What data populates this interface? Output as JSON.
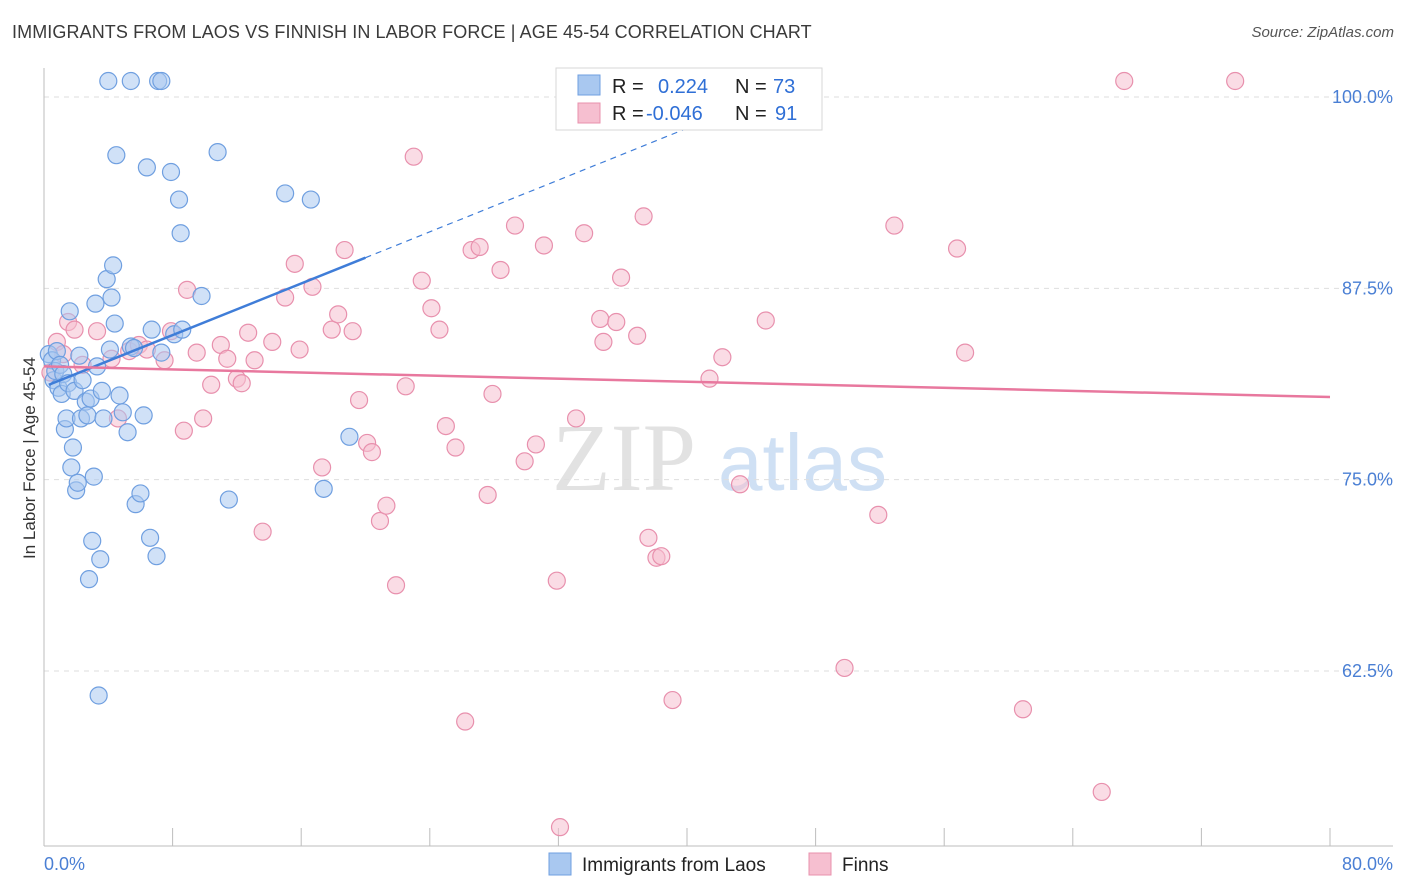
{
  "title": "IMMIGRANTS FROM LAOS VS FINNISH IN LABOR FORCE | AGE 45-54 CORRELATION CHART",
  "source": "Source: ZipAtlas.com",
  "watermark": {
    "zip": "ZIP",
    "atlas": "atlas"
  },
  "legend": {
    "r_label": "R =",
    "n_label": "N =",
    "series1": {
      "r": "0.224",
      "n": "73"
    },
    "series2": {
      "r": "-0.046",
      "n": "91"
    }
  },
  "colors": {
    "blue_fill": "#a9c8f0",
    "blue_stroke": "#6f9fe0",
    "blue_line": "#3f7dd8",
    "pink_fill": "#f6bfd0",
    "pink_stroke": "#e890ad",
    "pink_line": "#e8789e",
    "grid": "#dddddd",
    "axis_text": "#4a7fd4"
  },
  "chart_data": {
    "type": "scatter",
    "title": "IMMIGRANTS FROM LAOS VS FINNISH IN LABOR FORCE | AGE 45-54 CORRELATION CHART",
    "xlabel": "",
    "ylabel": "In Labor Force | Age 45-54",
    "xlim": [
      0,
      80
    ],
    "ylim": [
      50,
      101
    ],
    "x_tick_labels": [
      "0.0%",
      "80.0%"
    ],
    "y_ticks": [
      62.5,
      75.0,
      87.5,
      100.0
    ],
    "y_tick_labels": [
      "62.5%",
      "75.0%",
      "87.5%",
      "100.0%"
    ],
    "series": [
      {
        "name": "Immigrants from Laos",
        "color": "#a9c8f0",
        "trend": {
          "x0": 0.3,
          "y0": 81.2,
          "x1": 20.0,
          "y1": 89.5,
          "dashed_to_x": 42.0,
          "dashed_to_y": 98.8
        },
        "points": [
          [
            0.3,
            83.2
          ],
          [
            0.5,
            82.8
          ],
          [
            0.6,
            81.5
          ],
          [
            0.7,
            82.1
          ],
          [
            0.8,
            83.4
          ],
          [
            0.9,
            81.0
          ],
          [
            1.0,
            82.5
          ],
          [
            1.1,
            80.6
          ],
          [
            1.2,
            81.9
          ],
          [
            1.3,
            78.3
          ],
          [
            1.4,
            79.0
          ],
          [
            1.5,
            81.3
          ],
          [
            1.6,
            86.0
          ],
          [
            1.7,
            75.8
          ],
          [
            1.8,
            77.1
          ],
          [
            1.9,
            80.8
          ],
          [
            2.0,
            74.3
          ],
          [
            2.1,
            74.8
          ],
          [
            2.2,
            83.1
          ],
          [
            2.3,
            79.0
          ],
          [
            2.4,
            81.5
          ],
          [
            2.6,
            80.1
          ],
          [
            2.7,
            79.2
          ],
          [
            2.8,
            68.5
          ],
          [
            2.9,
            80.3
          ],
          [
            3.0,
            71.0
          ],
          [
            3.1,
            75.2
          ],
          [
            3.2,
            86.5
          ],
          [
            3.3,
            82.4
          ],
          [
            3.4,
            60.9
          ],
          [
            3.5,
            69.8
          ],
          [
            3.6,
            80.8
          ],
          [
            3.7,
            79.0
          ],
          [
            3.9,
            88.1
          ],
          [
            4.1,
            83.5
          ],
          [
            4.2,
            86.9
          ],
          [
            4.3,
            89.0
          ],
          [
            4.4,
            85.2
          ],
          [
            4.5,
            96.2
          ],
          [
            4.7,
            80.5
          ],
          [
            4.9,
            79.4
          ],
          [
            5.2,
            78.1
          ],
          [
            5.4,
            83.7
          ],
          [
            5.6,
            83.6
          ],
          [
            5.7,
            73.4
          ],
          [
            6.0,
            74.1
          ],
          [
            6.2,
            79.2
          ],
          [
            6.4,
            95.4
          ],
          [
            6.6,
            71.2
          ],
          [
            6.7,
            84.8
          ],
          [
            7.0,
            70.0
          ],
          [
            7.3,
            83.3
          ],
          [
            7.9,
            95.1
          ],
          [
            8.1,
            84.5
          ],
          [
            8.4,
            93.3
          ],
          [
            8.5,
            91.1
          ],
          [
            8.6,
            84.8
          ],
          [
            9.8,
            87.0
          ],
          [
            10.8,
            96.4
          ],
          [
            11.5,
            73.7
          ],
          [
            15.0,
            93.7
          ],
          [
            16.6,
            93.3
          ],
          [
            17.4,
            74.4
          ],
          [
            19.0,
            77.8
          ],
          [
            4.0,
            100
          ],
          [
            5.4,
            100
          ],
          [
            7.1,
            100
          ],
          [
            7.3,
            100
          ]
        ]
      },
      {
        "name": "Finns",
        "color": "#f6bfd0",
        "trend": {
          "x0": 0.0,
          "y0": 82.4,
          "x1": 80.0,
          "y1": 80.4
        },
        "points": [
          [
            0.4,
            82.0
          ],
          [
            0.8,
            84.0
          ],
          [
            1.2,
            83.2
          ],
          [
            1.5,
            85.3
          ],
          [
            1.9,
            84.8
          ],
          [
            2.4,
            82.5
          ],
          [
            3.3,
            84.7
          ],
          [
            4.2,
            82.9
          ],
          [
            4.6,
            79.0
          ],
          [
            5.3,
            83.4
          ],
          [
            5.9,
            83.8
          ],
          [
            6.4,
            83.5
          ],
          [
            7.5,
            82.8
          ],
          [
            7.9,
            84.7
          ],
          [
            8.7,
            78.2
          ],
          [
            8.9,
            87.4
          ],
          [
            9.5,
            83.3
          ],
          [
            9.9,
            79.0
          ],
          [
            10.4,
            81.2
          ],
          [
            11.0,
            83.8
          ],
          [
            11.4,
            82.9
          ],
          [
            12.0,
            81.6
          ],
          [
            12.3,
            81.3
          ],
          [
            12.7,
            84.6
          ],
          [
            13.1,
            82.8
          ],
          [
            13.6,
            71.6
          ],
          [
            14.2,
            84.0
          ],
          [
            15.0,
            86.9
          ],
          [
            15.6,
            89.1
          ],
          [
            15.9,
            83.5
          ],
          [
            16.7,
            87.6
          ],
          [
            17.3,
            75.8
          ],
          [
            17.9,
            84.8
          ],
          [
            18.3,
            85.8
          ],
          [
            18.7,
            90.0
          ],
          [
            19.2,
            84.7
          ],
          [
            19.6,
            80.2
          ],
          [
            20.1,
            77.4
          ],
          [
            20.4,
            76.8
          ],
          [
            20.9,
            72.3
          ],
          [
            21.3,
            73.3
          ],
          [
            21.9,
            68.1
          ],
          [
            22.5,
            81.1
          ],
          [
            23.0,
            96.1
          ],
          [
            23.5,
            88.0
          ],
          [
            24.1,
            86.2
          ],
          [
            24.6,
            84.8
          ],
          [
            25.0,
            78.5
          ],
          [
            25.6,
            77.1
          ],
          [
            26.2,
            59.2
          ],
          [
            26.6,
            90.0
          ],
          [
            27.1,
            90.2
          ],
          [
            27.6,
            74.0
          ],
          [
            27.9,
            80.6
          ],
          [
            28.4,
            88.7
          ],
          [
            29.3,
            91.6
          ],
          [
            29.9,
            76.2
          ],
          [
            30.6,
            77.3
          ],
          [
            31.1,
            90.3
          ],
          [
            31.9,
            68.4
          ],
          [
            32.1,
            52.3
          ],
          [
            33.1,
            79.0
          ],
          [
            33.6,
            91.1
          ],
          [
            34.8,
            84.0
          ],
          [
            34.6,
            85.5
          ],
          [
            35.6,
            85.3
          ],
          [
            35.9,
            88.2
          ],
          [
            36.9,
            84.4
          ],
          [
            37.3,
            92.2
          ],
          [
            37.6,
            71.2
          ],
          [
            38.1,
            69.9
          ],
          [
            38.4,
            70.0
          ],
          [
            39.1,
            60.6
          ],
          [
            41.4,
            81.6
          ],
          [
            42.2,
            83.0
          ],
          [
            43.3,
            74.7
          ],
          [
            44.9,
            85.4
          ],
          [
            49.8,
            62.7
          ],
          [
            51.9,
            72.7
          ],
          [
            52.9,
            91.6
          ],
          [
            56.8,
            90.1
          ],
          [
            57.3,
            83.3
          ],
          [
            60.9,
            60.0
          ],
          [
            65.8,
            54.6
          ],
          [
            67.2,
            100.0
          ],
          [
            74.1,
            100.0
          ]
        ]
      }
    ],
    "legend_entries": [
      "Immigrants from Laos",
      "Finns"
    ]
  },
  "bottom_legend": {
    "series1_label": "Immigrants from Laos",
    "series2_label": "Finns"
  }
}
